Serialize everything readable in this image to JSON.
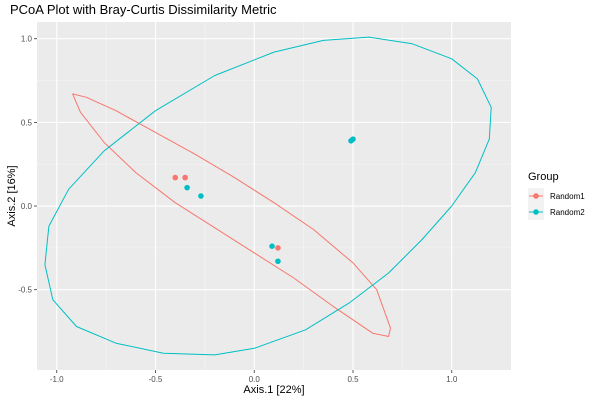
{
  "chart_data": {
    "type": "scatter",
    "title": "PCoA Plot with Bray-Curtis Dissimilarity Metric",
    "xlabel": "Axis.1   [22%]",
    "ylabel": "Axis.2   [16%]",
    "xlim": [
      -1.1,
      1.3
    ],
    "ylim": [
      -0.98,
      1.1
    ],
    "x_ticks": [
      {
        "value": -1.0,
        "label": "-1.0"
      },
      {
        "value": -0.5,
        "label": "-0.5"
      },
      {
        "value": 0.0,
        "label": "0.0"
      },
      {
        "value": 0.5,
        "label": "0.5"
      },
      {
        "value": 1.0,
        "label": "1.0"
      }
    ],
    "y_ticks": [
      {
        "value": 1.0,
        "label": "1.0"
      },
      {
        "value": 0.5,
        "label": "0.5"
      },
      {
        "value": 0.0,
        "label": "0.0"
      },
      {
        "value": -0.5,
        "label": "-0.5"
      }
    ],
    "grid": true,
    "legend": {
      "title": "Group",
      "position": "right"
    },
    "series": [
      {
        "name": "Random1",
        "color": "#F8766D",
        "points": [
          {
            "x": -0.4,
            "y": 0.17
          },
          {
            "x": -0.35,
            "y": 0.17
          },
          {
            "x": 0.12,
            "y": -0.25
          }
        ],
        "ellipse": [
          [
            -0.92,
            0.67
          ],
          [
            -0.85,
            0.65
          ],
          [
            -0.7,
            0.57
          ],
          [
            -0.5,
            0.44
          ],
          [
            -0.3,
            0.31
          ],
          [
            -0.1,
            0.17
          ],
          [
            0.1,
            0.02
          ],
          [
            0.3,
            -0.14
          ],
          [
            0.5,
            -0.34
          ],
          [
            0.62,
            -0.5
          ],
          [
            0.69,
            -0.73
          ],
          [
            0.68,
            -0.78
          ],
          [
            0.6,
            -0.76
          ],
          [
            0.4,
            -0.6
          ],
          [
            0.2,
            -0.43
          ],
          [
            0.0,
            -0.28
          ],
          [
            -0.2,
            -0.13
          ],
          [
            -0.4,
            0.02
          ],
          [
            -0.6,
            0.2
          ],
          [
            -0.76,
            0.38
          ],
          [
            -0.88,
            0.56
          ],
          [
            -0.92,
            0.67
          ]
        ]
      },
      {
        "name": "Random2",
        "color": "#00BFC4",
        "points": [
          {
            "x": 0.5,
            "y": 0.4
          },
          {
            "x": 0.49,
            "y": 0.39
          },
          {
            "x": -0.34,
            "y": 0.11
          },
          {
            "x": -0.27,
            "y": 0.06
          },
          {
            "x": 0.09,
            "y": -0.24
          },
          {
            "x": 0.12,
            "y": -0.33
          }
        ],
        "ellipse": [
          [
            0.58,
            1.01
          ],
          [
            0.8,
            0.97
          ],
          [
            1.0,
            0.88
          ],
          [
            1.13,
            0.76
          ],
          [
            1.2,
            0.59
          ],
          [
            1.19,
            0.4
          ],
          [
            1.12,
            0.2
          ],
          [
            1.0,
            0.0
          ],
          [
            0.85,
            -0.2
          ],
          [
            0.68,
            -0.4
          ],
          [
            0.48,
            -0.58
          ],
          [
            0.26,
            -0.74
          ],
          [
            0.0,
            -0.85
          ],
          [
            -0.2,
            -0.89
          ],
          [
            -0.46,
            -0.88
          ],
          [
            -0.7,
            -0.82
          ],
          [
            -0.9,
            -0.72
          ],
          [
            -1.02,
            -0.56
          ],
          [
            -1.06,
            -0.35
          ],
          [
            -1.04,
            -0.12
          ],
          [
            -0.94,
            0.1
          ],
          [
            -0.76,
            0.33
          ],
          [
            -0.5,
            0.57
          ],
          [
            -0.2,
            0.78
          ],
          [
            0.1,
            0.92
          ],
          [
            0.35,
            0.99
          ],
          [
            0.58,
            1.01
          ]
        ]
      }
    ]
  }
}
